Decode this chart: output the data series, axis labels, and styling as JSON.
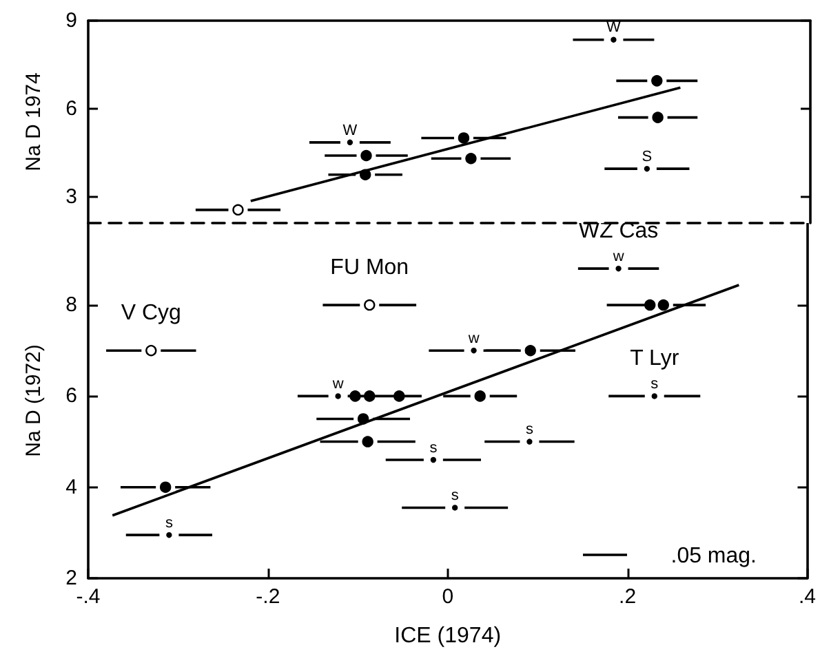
{
  "chart_data": [
    {
      "type": "scatter",
      "ylabel": "Na D 1974",
      "xlim": [
        -0.4,
        0.4
      ],
      "ylim": [
        2.1,
        9
      ],
      "yticks": [
        3,
        6,
        9
      ],
      "tick_labels": "y",
      "series": [
        {
          "color": "#000000",
          "marker": "circle",
          "x": [
            0.23,
            0.231,
            -0.092,
            -0.093,
            0.016,
            0.024
          ],
          "values": [
            6.95,
            5.7,
            4.4,
            3.75,
            5.0,
            4.3
          ],
          "xerrors": [
            0.045,
            0.044,
            0.046,
            0.041,
            0.047,
            0.044
          ]
        },
        {
          "color": "#ffffff",
          "marker": "circle",
          "x": [
            -0.234
          ],
          "values": [
            2.55
          ],
          "xerrors": [
            0.047
          ]
        },
        {
          "color": "#000000",
          "marker": "none",
          "x": [
            0.182,
            -0.11
          ],
          "values": [
            8.35,
            4.85
          ],
          "xerrors": [
            0.045,
            0.045
          ],
          "value_labels": [
            "W",
            "W"
          ]
        },
        {
          "color": "#000000",
          "marker": "none",
          "x": [
            0.219
          ],
          "values": [
            3.95
          ],
          "xerrors": [
            0.047
          ],
          "value_labels": [
            "S"
          ]
        },
        {
          "type": "line",
          "color": "#000000",
          "marker": "none",
          "x": [
            -0.22,
            0.256
          ],
          "values": [
            2.85,
            6.72
          ]
        }
      ]
    },
    {
      "type": "scatter",
      "ylabel": "Na D (1972)",
      "xlabel": "ICE (1974)",
      "xlim": [
        -0.4,
        0.4
      ],
      "ylim": [
        2,
        9.8
      ],
      "yticks": [
        2,
        4,
        6,
        8
      ],
      "xticks": [
        {
          "value": -0.4,
          "label": "-.4"
        },
        {
          "value": -0.2,
          "label": "-.2"
        },
        0,
        {
          "value": 0.2,
          "label": ".2"
        },
        {
          "value": 0.4,
          "label": ".4"
        }
      ],
      "annotations": [
        {
          "text": "V Cyg",
          "x": -0.33,
          "y": 7
        },
        {
          "text": "FU Mon",
          "x": -0.087,
          "y": 8
        },
        {
          "text": "WZ Cas",
          "x": 0.19,
          "y": 8.8
        },
        {
          "text": "T Lyr",
          "x": 0.23,
          "y": 6
        },
        ".05 mag."
      ],
      "series": [
        {
          "color": "#000000",
          "marker": "circle",
          "x": [
            -0.103,
            -0.087,
            -0.054,
            -0.094,
            -0.089,
            -0.314,
            0.225,
            0.24,
            0.092,
            0.036
          ],
          "values": [
            6,
            6,
            6,
            5.5,
            5.0,
            4.0,
            8,
            8,
            7,
            6
          ],
          "xerrors": [
            null,
            null,
            null,
            0.052,
            0.053,
            0.05,
            null,
            [
              0.177,
              0.287
            ],
            0.05,
            0.041
          ]
        },
        {
          "color": "#ffffff",
          "marker": "circle",
          "x": [
            -0.33,
            -0.087
          ],
          "values": [
            7,
            8
          ],
          "xerrors": [
            0.05,
            0.052
          ]
        },
        {
          "color": "#000000",
          "marker": "none",
          "x": [
            0.19,
            -0.122,
            0.029
          ],
          "values": [
            8.8,
            6,
            7
          ],
          "xerrors": [
            0.045,
            [
              -0.167,
              -0.029
            ],
            0.05
          ],
          "value_labels": [
            "w",
            "w",
            "w"
          ]
        },
        {
          "color": "#000000",
          "marker": "none",
          "x": [
            -0.31,
            -0.016,
            0.008,
            0.23,
            0.091
          ],
          "values": [
            2.95,
            4.6,
            3.55,
            6,
            5.0
          ],
          "xerrors": [
            0.048,
            0.053,
            0.059,
            0.051,
            0.05
          ],
          "value_labels": [
            "s",
            "s",
            "s",
            "s",
            "s"
          ]
        },
        {
          "type": "line",
          "color": "#000000",
          "marker": "none",
          "x": [
            -0.373,
            0.324
          ],
          "values": [
            3.38,
            8.44
          ]
        }
      ]
    }
  ]
}
